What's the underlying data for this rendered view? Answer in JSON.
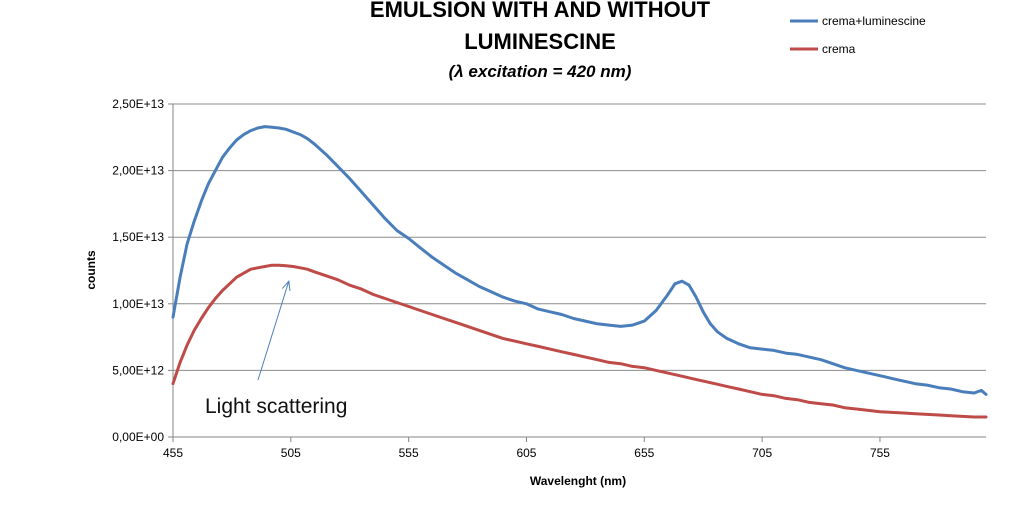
{
  "chart_data": {
    "type": "line",
    "title_line1": "EMULSION WITH AND WITHOUT",
    "title_line2": "LUMINESCINE",
    "subtitle": "(λ excitation = 420 nm)",
    "xlabel": "Wavelenght (nm)",
    "ylabel": "counts",
    "xlim": [
      455,
      800
    ],
    "ylim": [
      0,
      25000000000000.0
    ],
    "x_ticks": [
      455,
      505,
      555,
      605,
      655,
      705,
      755
    ],
    "y_ticks": [
      {
        "value": 0,
        "label": "0,00E+00"
      },
      {
        "value": 5000000000000.0,
        "label": "5,00E+12"
      },
      {
        "value": 10000000000000.0,
        "label": "1,00E+13"
      },
      {
        "value": 15000000000000.0,
        "label": "1,50E+13"
      },
      {
        "value": 20000000000000.0,
        "label": "2,00E+13"
      },
      {
        "value": 25000000000000.0,
        "label": "2,50E+13"
      }
    ],
    "grid": "horizontal",
    "legend_position": "top-right",
    "series": [
      {
        "name": "crema+luminescine",
        "color": "#4a7ebb",
        "x": [
          455,
          458,
          461,
          464,
          467,
          470,
          473,
          476,
          479,
          482,
          485,
          488,
          491,
          494,
          497,
          500,
          503,
          506,
          509,
          512,
          515,
          520,
          525,
          530,
          535,
          540,
          545,
          550,
          555,
          560,
          565,
          570,
          575,
          580,
          585,
          590,
          595,
          600,
          605,
          610,
          615,
          620,
          625,
          630,
          635,
          640,
          645,
          650,
          655,
          660,
          665,
          668,
          671,
          674,
          677,
          680,
          683,
          686,
          690,
          695,
          700,
          705,
          710,
          715,
          720,
          725,
          730,
          735,
          740,
          745,
          750,
          755,
          760,
          765,
          770,
          775,
          780,
          785,
          790,
          795,
          798,
          800
        ],
        "y": [
          9000000000000.0,
          12000000000000.0,
          14500000000000.0,
          16200000000000.0,
          17700000000000.0,
          19000000000000.0,
          20000000000000.0,
          21000000000000.0,
          21700000000000.0,
          22300000000000.0,
          22700000000000.0,
          23000000000000.0,
          23200000000000.0,
          23300000000000.0,
          23250000000000.0,
          23200000000000.0,
          23100000000000.0,
          22900000000000.0,
          22700000000000.0,
          22400000000000.0,
          22000000000000.0,
          21200000000000.0,
          20300000000000.0,
          19400000000000.0,
          18400000000000.0,
          17400000000000.0,
          16400000000000.0,
          15500000000000.0,
          14900000000000.0,
          14200000000000.0,
          13500000000000.0,
          12900000000000.0,
          12300000000000.0,
          11800000000000.0,
          11300000000000.0,
          10900000000000.0,
          10500000000000.0,
          10200000000000.0,
          10000000000000.0,
          9600000000000.0,
          9400000000000.0,
          9200000000000.0,
          8900000000000.0,
          8700000000000.0,
          8500000000000.0,
          8400000000000.0,
          8300000000000.0,
          8400000000000.0,
          8700000000000.0,
          9500000000000.0,
          10700000000000.0,
          11500000000000.0,
          11700000000000.0,
          11400000000000.0,
          10500000000000.0,
          9400000000000.0,
          8500000000000.0,
          7900000000000.0,
          7400000000000.0,
          7000000000000.0,
          6700000000000.0,
          6600000000000.0,
          6500000000000.0,
          6300000000000.0,
          6200000000000.0,
          6000000000000.0,
          5800000000000.0,
          5500000000000.0,
          5200000000000.0,
          5000000000000.0,
          4800000000000.0,
          4600000000000.0,
          4400000000000.0,
          4200000000000.0,
          4000000000000.0,
          3900000000000.0,
          3700000000000.0,
          3600000000000.0,
          3400000000000.0,
          3300000000000.0,
          3500000000000.0,
          3200000000000.0
        ]
      },
      {
        "name": "crema",
        "color": "#be4b48",
        "x": [
          455,
          458,
          461,
          464,
          467,
          470,
          473,
          476,
          479,
          482,
          485,
          488,
          491,
          494,
          497,
          500,
          503,
          506,
          509,
          512,
          515,
          520,
          525,
          530,
          535,
          540,
          545,
          550,
          555,
          560,
          565,
          570,
          575,
          580,
          585,
          590,
          595,
          600,
          605,
          610,
          615,
          620,
          625,
          630,
          635,
          640,
          645,
          650,
          655,
          660,
          665,
          670,
          675,
          680,
          685,
          690,
          695,
          700,
          705,
          710,
          715,
          720,
          725,
          730,
          735,
          740,
          745,
          750,
          755,
          760,
          765,
          770,
          775,
          780,
          785,
          790,
          795,
          800
        ],
        "y": [
          4000000000000.0,
          5600000000000.0,
          6900000000000.0,
          8000000000000.0,
          8900000000000.0,
          9700000000000.0,
          10400000000000.0,
          11000000000000.0,
          11500000000000.0,
          12000000000000.0,
          12300000000000.0,
          12600000000000.0,
          12700000000000.0,
          12800000000000.0,
          12900000000000.0,
          12900000000000.0,
          12850000000000.0,
          12800000000000.0,
          12700000000000.0,
          12600000000000.0,
          12400000000000.0,
          12100000000000.0,
          11800000000000.0,
          11400000000000.0,
          11100000000000.0,
          10700000000000.0,
          10400000000000.0,
          10100000000000.0,
          9800000000000.0,
          9500000000000.0,
          9200000000000.0,
          8900000000000.0,
          8600000000000.0,
          8300000000000.0,
          8000000000000.0,
          7700000000000.0,
          7400000000000.0,
          7200000000000.0,
          7000000000000.0,
          6800000000000.0,
          6600000000000.0,
          6400000000000.0,
          6200000000000.0,
          6000000000000.0,
          5800000000000.0,
          5600000000000.0,
          5500000000000.0,
          5300000000000.0,
          5200000000000.0,
          5000000000000.0,
          4800000000000.0,
          4600000000000.0,
          4400000000000.0,
          4200000000000.0,
          4000000000000.0,
          3800000000000.0,
          3600000000000.0,
          3400000000000.0,
          3200000000000.0,
          3100000000000.0,
          2900000000000.0,
          2800000000000.0,
          2600000000000.0,
          2500000000000.0,
          2400000000000.0,
          2200000000000.0,
          2100000000000.0,
          2000000000000.0,
          1900000000000.0,
          1850000000000.0,
          1800000000000.0,
          1750000000000.0,
          1700000000000.0,
          1650000000000.0,
          1600000000000.0,
          1550000000000.0,
          1500000000000.0,
          1500000000000.0
        ]
      }
    ],
    "annotation": {
      "text": "Light scattering",
      "arrow_target": {
        "x": 505,
        "y": 11700000000000.0
      }
    }
  }
}
